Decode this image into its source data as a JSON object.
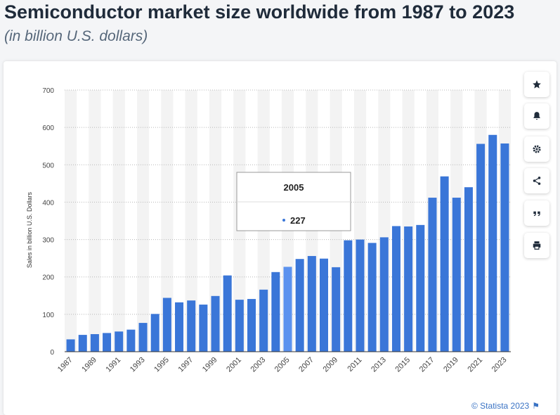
{
  "header": {
    "title": "Semiconductor market size worldwide from 1987 to 2023",
    "subtitle": "(in billion U.S. dollars)"
  },
  "tooltip": {
    "category": "2005",
    "value": "227"
  },
  "sidebar": {
    "buttons": [
      {
        "icon": "star-icon"
      },
      {
        "icon": "bell-icon"
      },
      {
        "icon": "gear-icon"
      },
      {
        "icon": "share-icon"
      },
      {
        "icon": "quote-icon"
      },
      {
        "icon": "print-icon"
      }
    ]
  },
  "footer": {
    "credit": "© Statista 2023"
  },
  "colors": {
    "bar": "#3a76d8",
    "bar_highlight": "#5b92ef",
    "title": "#1f2b3a",
    "link": "#3a73c4"
  },
  "chart_data": {
    "type": "bar",
    "ylabel": "Sales in billion U.S. Dollars",
    "xlabel": "",
    "ylim": [
      0,
      700
    ],
    "yticks": [
      0,
      100,
      200,
      300,
      400,
      500,
      600,
      700
    ],
    "categories": [
      "1987",
      "1988",
      "1989",
      "1990",
      "1991",
      "1992",
      "1993",
      "1994",
      "1995",
      "1996",
      "1997",
      "1998",
      "1999",
      "2000",
      "2001",
      "2002",
      "2003",
      "2004",
      "2005",
      "2006",
      "2007",
      "2008",
      "2009",
      "2010",
      "2011",
      "2012",
      "2013",
      "2014",
      "2015",
      "2016",
      "2017",
      "2018",
      "2019",
      "2020",
      "2021",
      "2022",
      "2023"
    ],
    "xtick_labels": [
      "1987",
      "",
      "1989",
      "",
      "1991",
      "",
      "1993",
      "",
      "1995",
      "",
      "1997",
      "",
      "1999",
      "",
      "2001",
      "",
      "2003",
      "",
      "2005",
      "",
      "2007",
      "",
      "2009",
      "",
      "2011",
      "",
      "2013",
      "",
      "2015",
      "",
      "2017",
      "",
      "2019",
      "",
      "2021",
      "",
      "2023"
    ],
    "values": [
      33,
      45,
      47,
      50,
      54,
      59,
      77,
      101,
      144,
      132,
      137,
      126,
      149,
      204,
      139,
      141,
      166,
      213,
      227,
      248,
      256,
      249,
      226,
      298,
      300,
      291,
      306,
      336,
      335,
      339,
      412,
      469,
      412,
      440,
      556,
      580,
      557
    ],
    "highlight": "2005",
    "grid": true
  }
}
